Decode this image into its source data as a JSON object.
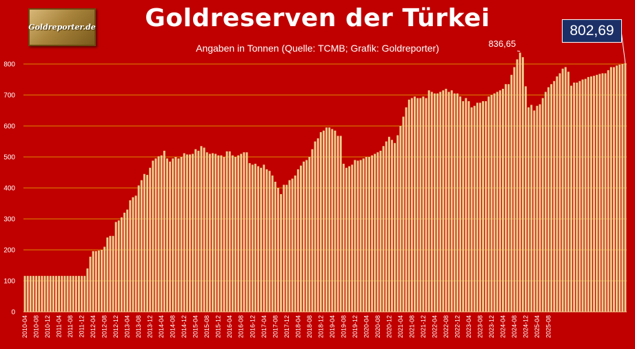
{
  "logo_text": "Goldreporter.de",
  "chart_data": {
    "type": "bar",
    "title": "Goldreserven der Türkei",
    "subtitle": "Angaben in Tonnen (Quelle: TCMB; Grafik: Goldreporter)",
    "ylim": [
      0,
      800
    ],
    "yticks": [
      "0",
      "100",
      "200",
      "300",
      "400",
      "500",
      "600",
      "700",
      "800"
    ],
    "grid": true,
    "bar_color": "#f0d090",
    "background_color": "#c00000",
    "x_labels": [
      "2010-04",
      "2010-08",
      "2010-12",
      "2011-04",
      "2011-08",
      "2011-12",
      "2012-04",
      "2012-08",
      "2012-12",
      "2013-04",
      "2013-08",
      "2013-12",
      "2014-04",
      "2014-08",
      "2014-12",
      "2015-04",
      "2015-08",
      "2015-12",
      "2016-04",
      "2016-08",
      "2016-12",
      "2017-04",
      "2017-08",
      "2017-12",
      "2018-04",
      "2018-08",
      "2018-12",
      "2019-04",
      "2019-08",
      "2019-12",
      "2020-04",
      "2020-08",
      "2020-12",
      "2021-04",
      "2021-08",
      "2021-12",
      "2022-04",
      "2022-08",
      "2022-12",
      "2023-04",
      "2023-08",
      "2023-12",
      "2024-04",
      "2024-08",
      "2024-12",
      "2025-04",
      "2025-08"
    ],
    "start_month": "2010-04",
    "values": [
      116,
      116,
      116,
      116,
      116,
      116,
      116,
      116,
      116,
      116,
      116,
      116,
      116,
      116,
      116,
      116,
      116,
      116,
      116,
      116,
      116,
      116,
      140,
      178,
      196,
      196,
      198,
      200,
      210,
      240,
      245,
      245,
      290,
      295,
      305,
      320,
      330,
      360,
      370,
      375,
      408,
      425,
      445,
      442,
      465,
      488,
      495,
      502,
      505,
      520,
      495,
      485,
      495,
      500,
      495,
      500,
      512,
      508,
      508,
      510,
      525,
      520,
      535,
      530,
      515,
      510,
      512,
      510,
      505,
      505,
      500,
      518,
      518,
      505,
      500,
      505,
      510,
      515,
      515,
      480,
      475,
      478,
      470,
      465,
      475,
      460,
      455,
      440,
      420,
      400,
      380,
      410,
      410,
      425,
      430,
      440,
      460,
      472,
      485,
      490,
      500,
      525,
      550,
      560,
      580,
      585,
      595,
      595,
      590,
      585,
      568,
      568,
      478,
      465,
      470,
      475,
      490,
      488,
      490,
      495,
      500,
      500,
      505,
      510,
      515,
      520,
      535,
      550,
      565,
      555,
      545,
      570,
      600,
      630,
      660,
      685,
      690,
      695,
      690,
      690,
      695,
      690,
      715,
      710,
      705,
      705,
      710,
      715,
      720,
      710,
      715,
      705,
      705,
      695,
      680,
      690,
      680,
      660,
      665,
      675,
      675,
      680,
      680,
      695,
      700,
      705,
      710,
      715,
      720,
      735,
      735,
      765,
      790,
      815,
      836.65,
      822,
      728,
      660,
      668,
      650,
      665,
      670,
      690,
      710,
      725,
      735,
      745,
      760,
      770,
      785,
      790,
      775,
      730,
      740,
      740,
      745,
      750,
      752,
      758,
      760,
      762,
      765,
      768,
      770,
      770,
      780,
      790,
      790,
      795,
      798,
      800,
      802.69
    ],
    "peak_label": "836,65",
    "last_value_label": "802,69"
  }
}
